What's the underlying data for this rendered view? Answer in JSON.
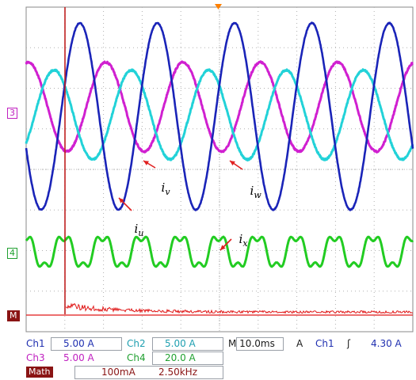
{
  "chart_data": {
    "type": "line",
    "time_unit": "ms",
    "time_per_div": 10,
    "divisions_x": 10,
    "divisions_y": 8,
    "colors": {
      "ch1": "#1a24b8",
      "ch2": "#22d2d8",
      "ch3": "#d020d0",
      "ch4": "#22cc22",
      "math": "#e01818",
      "grid": "#b0b0b0",
      "trigger": "#ff8000",
      "cursor": "#c02020"
    },
    "series": [
      {
        "name": "i_u",
        "channel": "Ch1",
        "frequency_hz": 50,
        "amplitude_A": 11.5,
        "offset_div": 1.45,
        "phase_deg": -160,
        "noise": 0.2
      },
      {
        "name": "i_v",
        "channel": "Ch2",
        "frequency_hz": 50,
        "amplitude_A": 5.5,
        "offset_div": 1.45,
        "phase_deg": -40,
        "noise": 0.35
      },
      {
        "name": "i_w",
        "channel": "Ch3",
        "frequency_hz": 50,
        "amplitude_A": 5.5,
        "offset_div": 1.45,
        "phase_deg": 80,
        "noise": 0.35
      },
      {
        "name": "i_x",
        "channel": "Ch4",
        "frequency_hz": 100,
        "amplitude_A": 30,
        "offset_div": 0,
        "phase_deg": 180,
        "harmonic3_ratio": 0.32,
        "noise": 0.08
      },
      {
        "name": "Math FFT",
        "channel": "Math",
        "scale": "100mA",
        "span": "2.50kHz"
      }
    ],
    "markers": {
      "ch3": "3",
      "ch4": "4",
      "math": "M"
    },
    "annotations": [
      {
        "text": "i",
        "sub": "u"
      },
      {
        "text": "i",
        "sub": "v"
      },
      {
        "text": "i",
        "sub": "w"
      },
      {
        "text": "i",
        "sub": "x"
      }
    ]
  },
  "status_bar": {
    "ch1": {
      "label": "Ch1",
      "scale": "5.00 A"
    },
    "ch2": {
      "label": "Ch2",
      "scale": "5.00 A"
    },
    "ch3": {
      "label": "Ch3",
      "scale": "5.00 A"
    },
    "ch4": {
      "label": "Ch4",
      "scale": "20.0 A"
    },
    "timebase": "M 10.0ms",
    "trigger": {
      "mode": "A",
      "source": "Ch1",
      "slope": "ʃ",
      "level": "4.30 A"
    },
    "math": {
      "label": "Math",
      "scale": "100mA",
      "span": "2.50kHz"
    }
  }
}
